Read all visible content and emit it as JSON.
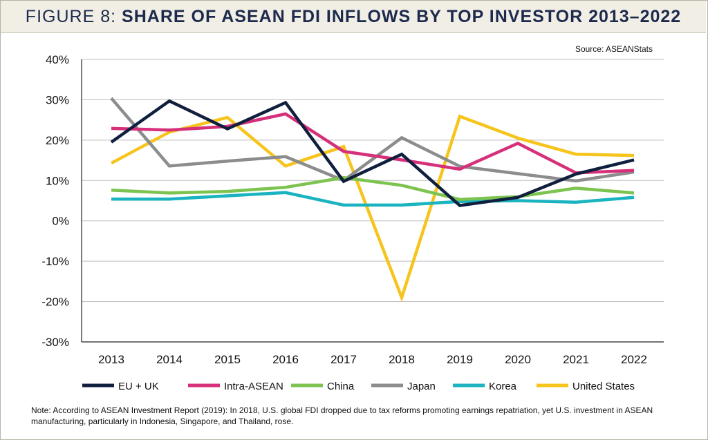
{
  "title": {
    "prefix": "FIGURE 8:",
    "main": "SHARE OF ASEAN FDI INFLOWS BY TOP INVESTOR 2013–2022"
  },
  "source": "Source: ASEANStats",
  "note": "Note: According to ASEAN Investment Report (2019): In 2018, U.S. global FDI dropped due to tax reforms promoting earnings repatriation, yet U.S. investment in ASEAN manufacturing, particularly in Indonesia, Singapore, and Thailand, rose.",
  "chart_data": {
    "type": "line",
    "x": [
      "2013",
      "2014",
      "2015",
      "2016",
      "2017",
      "2018",
      "2019",
      "2020",
      "2021",
      "2022"
    ],
    "ylim": [
      -30,
      40
    ],
    "yticks": [
      "40%",
      "30%",
      "20%",
      "10%",
      "0%",
      "-10%",
      "-20%",
      "-30%"
    ],
    "ytick_values": [
      40,
      30,
      20,
      10,
      0,
      -10,
      -20,
      -30
    ],
    "grid": true,
    "legend_position": "bottom",
    "series": [
      {
        "name": "EU + UK",
        "color": "#0f1f3d",
        "values": [
          19.5,
          29.7,
          22.8,
          29.3,
          9.8,
          16.5,
          3.8,
          5.8,
          11.6,
          15.1
        ]
      },
      {
        "name": "Intra-ASEAN",
        "color": "#d6307a",
        "values": [
          22.9,
          22.5,
          23.4,
          26.5,
          17.2,
          15.1,
          12.8,
          19.2,
          11.9,
          12.5
        ]
      },
      {
        "name": "China",
        "color": "#7cc34f",
        "values": [
          7.6,
          6.9,
          7.3,
          8.3,
          10.7,
          8.8,
          5.3,
          6.0,
          8.1,
          6.9
        ]
      },
      {
        "name": "Japan",
        "color": "#8a8c8e",
        "values": [
          30.4,
          13.6,
          14.8,
          15.9,
          10.0,
          20.6,
          13.5,
          11.7,
          9.9,
          12.1
        ]
      },
      {
        "name": "Korea",
        "color": "#1ab3c0",
        "values": [
          5.4,
          5.4,
          6.2,
          7.0,
          3.9,
          3.9,
          4.8,
          5.0,
          4.6,
          5.8
        ]
      },
      {
        "name": "United States",
        "color": "#f6c41c",
        "values": [
          14.3,
          22.0,
          25.6,
          13.6,
          18.4,
          -19.0,
          25.9,
          20.5,
          16.5,
          16.2
        ]
      }
    ]
  }
}
